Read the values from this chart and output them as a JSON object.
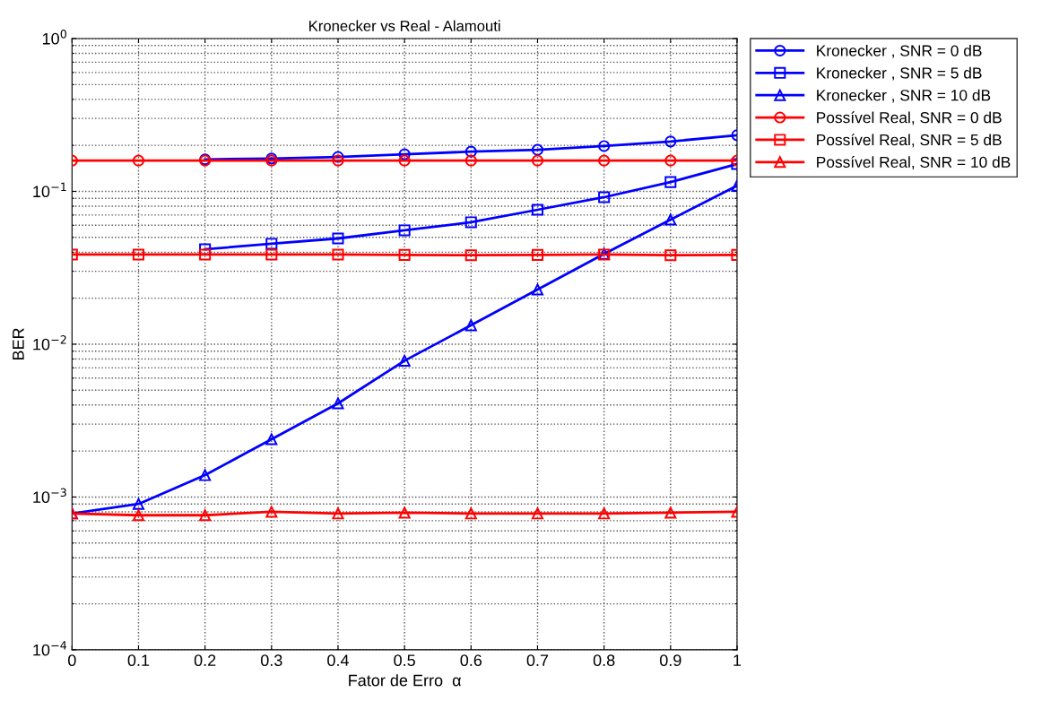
{
  "chart_data": {
    "type": "line",
    "title": "Kronecker vs Real - Alamouti",
    "xlabel": "Fator de Erro  α",
    "ylabel": "BER",
    "x": [
      0,
      0.1,
      0.2,
      0.3,
      0.4,
      0.5,
      0.6,
      0.7,
      0.8,
      0.9,
      1
    ],
    "series": [
      {
        "name": "Kronecker , SNR = 0 dB",
        "color": "#0000ff",
        "marker": "circle",
        "values": [
          null,
          null,
          0.162,
          0.164,
          0.168,
          0.175,
          0.182,
          0.187,
          0.198,
          0.212,
          0.233
        ]
      },
      {
        "name": "Kronecker , SNR = 5 dB",
        "color": "#0000ff",
        "marker": "square",
        "values": [
          null,
          null,
          0.0418,
          0.0454,
          0.0492,
          0.0556,
          0.0628,
          0.0758,
          0.0916,
          0.115,
          0.151
        ]
      },
      {
        "name": "Kronecker , SNR = 10 dB",
        "color": "#0000ff",
        "marker": "triangle",
        "values": [
          0.00078,
          0.0009,
          0.00139,
          0.00239,
          0.0041,
          0.0078,
          0.0133,
          0.0228,
          0.039,
          0.0653,
          0.109
        ]
      },
      {
        "name": "Possível Real, SNR = 0 dB",
        "color": "#ff0000",
        "marker": "circle",
        "values": [
          0.159,
          0.159,
          0.159,
          0.159,
          0.159,
          0.159,
          0.159,
          0.159,
          0.159,
          0.159,
          0.159
        ]
      },
      {
        "name": "Possível Real, SNR = 5 dB",
        "color": "#ff0000",
        "marker": "square",
        "values": [
          0.0386,
          0.0386,
          0.0386,
          0.0386,
          0.0386,
          0.0384,
          0.0382,
          0.0384,
          0.0386,
          0.0382,
          0.0384
        ]
      },
      {
        "name": "Possível Real, SNR = 10 dB",
        "color": "#ff0000",
        "marker": "triangle",
        "values": [
          0.00078,
          0.00076,
          0.00076,
          0.0008,
          0.00078,
          0.00079,
          0.00078,
          0.00078,
          0.00078,
          0.00079,
          0.0008
        ]
      }
    ],
    "log": "y",
    "xlim": [
      0,
      1
    ],
    "ylim": [
      0.0001,
      1
    ],
    "xticks": [
      0,
      0.1,
      0.2,
      0.3,
      0.4,
      0.5,
      0.6,
      0.7,
      0.8,
      0.9,
      1
    ],
    "yticks": [
      {
        "value": 0.0001,
        "label": "10$^{−4}$"
      },
      {
        "value": 0.001,
        "label": "10$^{−3}$"
      },
      {
        "value": 0.01,
        "label": "10$^{−2}$"
      },
      {
        "value": 0.1,
        "label": "10$^{−1}$"
      },
      {
        "value": 1,
        "label": "10$^{0}$"
      }
    ],
    "grid": true,
    "legend": "top right",
    "line_style": "solid"
  }
}
